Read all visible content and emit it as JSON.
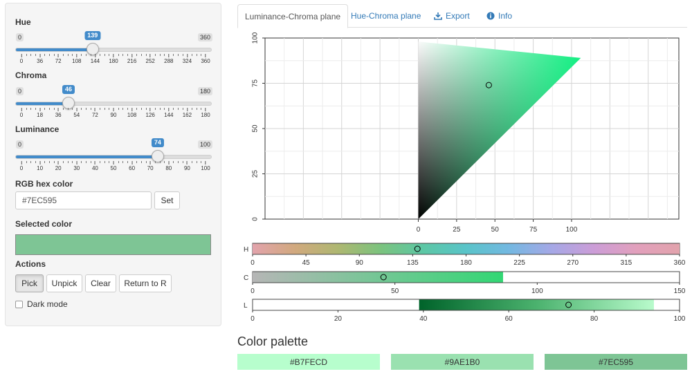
{
  "controls": {
    "hue": {
      "label": "Hue",
      "min_label": "0",
      "max_label": "360",
      "value_label": "139",
      "value": 139,
      "min": 0,
      "max": 360,
      "ticks": [
        "0",
        "36",
        "72",
        "108",
        "144",
        "180",
        "216",
        "252",
        "288",
        "324",
        "360"
      ]
    },
    "chroma": {
      "label": "Chroma",
      "min_label": "0",
      "max_label": "180",
      "value_label": "46",
      "value": 46,
      "min": 0,
      "max": 180,
      "ticks": [
        "0",
        "18",
        "36",
        "54",
        "72",
        "90",
        "108",
        "126",
        "144",
        "162",
        "180"
      ]
    },
    "luminance": {
      "label": "Luminance",
      "min_label": "0",
      "max_label": "100",
      "value_label": "74",
      "value": 74,
      "min": 0,
      "max": 100,
      "ticks": [
        "0",
        "10",
        "20",
        "30",
        "40",
        "50",
        "60",
        "70",
        "80",
        "90",
        "100"
      ]
    },
    "hex": {
      "label": "RGB hex color",
      "value": "#7EC595",
      "set_button": "Set"
    },
    "selected": {
      "label": "Selected color",
      "color": "#7EC595"
    },
    "actions": {
      "label": "Actions",
      "pick": "Pick",
      "unpick": "Unpick",
      "clear": "Clear",
      "return": "Return to R"
    },
    "dark_mode": {
      "label": "Dark mode",
      "checked": false
    }
  },
  "tabs": [
    {
      "label": "Luminance-Chroma plane",
      "active": true,
      "icon": ""
    },
    {
      "label": "Hue-Chroma plane",
      "active": false,
      "icon": ""
    },
    {
      "label": "Export",
      "active": false,
      "icon": "download-icon"
    },
    {
      "label": "Info",
      "active": false,
      "icon": "info-icon"
    }
  ],
  "chart_data": [
    {
      "type": "scatter",
      "title": "",
      "xlabel": "",
      "ylabel": "",
      "xlim": [
        -100,
        170
      ],
      "ylim": [
        0,
        100
      ],
      "x_ticks": [
        "0",
        "25",
        "50",
        "75",
        "100"
      ],
      "y_ticks": [
        "0",
        "25",
        "50",
        "75",
        "100"
      ],
      "grid": true,
      "selected_point": {
        "x": 46,
        "y": 74
      },
      "gamut_color_range": [
        "#000000",
        "#FFFFFF",
        "#00F07A"
      ]
    },
    {
      "type": "heatmap",
      "label": "H",
      "range": [
        0,
        360
      ],
      "ticks": [
        "0",
        "45",
        "90",
        "135",
        "180",
        "225",
        "270",
        "315",
        "360"
      ],
      "marker": 139
    },
    {
      "type": "heatmap",
      "label": "C",
      "range": [
        0,
        150
      ],
      "ticks": [
        "0",
        "50",
        "100",
        "150"
      ],
      "marker": 46,
      "gradient_end": 88
    },
    {
      "type": "heatmap",
      "label": "L",
      "range": [
        0,
        100
      ],
      "ticks": [
        "0",
        "20",
        "40",
        "60",
        "80",
        "100"
      ],
      "marker": 74,
      "gradient_start": 39,
      "gradient_end": 94
    }
  ],
  "palette": {
    "title": "Color palette",
    "swatches": [
      {
        "hex": "#B7FECD",
        "label": "#B7FECD"
      },
      {
        "hex": "#9AE1B0",
        "label": "#9AE1B0"
      },
      {
        "hex": "#7EC595",
        "label": "#7EC595"
      }
    ]
  }
}
